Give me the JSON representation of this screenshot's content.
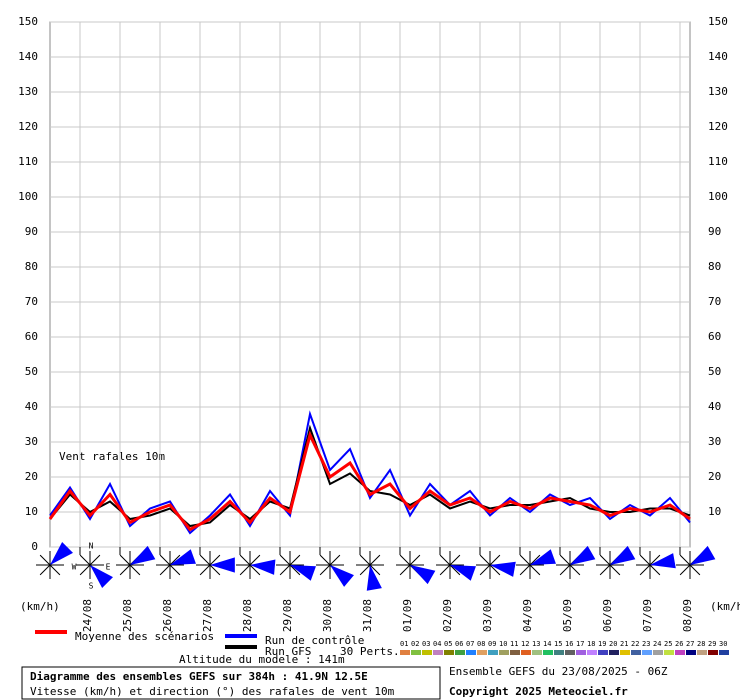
{
  "chart_data": {
    "type": "line",
    "annotation": "Vent rafales 10m",
    "y_unit_left": "(km/h)",
    "y_unit_right": "(km/h)",
    "x": [
      0,
      12,
      24,
      36,
      48,
      60,
      72,
      84,
      96,
      108,
      120,
      132,
      144,
      156,
      168,
      180,
      192,
      204,
      216,
      228,
      240,
      252,
      264,
      276,
      288,
      300,
      312,
      324,
      336,
      348,
      360,
      372,
      384
    ],
    "xlim": [
      0,
      384
    ],
    "xticks": [
      {
        "value": 18,
        "label": "24/08"
      },
      {
        "value": 42,
        "label": "25/08"
      },
      {
        "value": 66,
        "label": "26/08"
      },
      {
        "value": 90,
        "label": "27/08"
      },
      {
        "value": 114,
        "label": "28/08"
      },
      {
        "value": 138,
        "label": "29/08"
      },
      {
        "value": 162,
        "label": "30/08"
      },
      {
        "value": 186,
        "label": "31/08"
      },
      {
        "value": 210,
        "label": "01/09"
      },
      {
        "value": 234,
        "label": "02/09"
      },
      {
        "value": 258,
        "label": "03/09"
      },
      {
        "value": 282,
        "label": "04/09"
      },
      {
        "value": 306,
        "label": "05/09"
      },
      {
        "value": 330,
        "label": "06/09"
      },
      {
        "value": 354,
        "label": "07/09"
      },
      {
        "value": 378,
        "label": "08/09"
      }
    ],
    "ylim": [
      0,
      150
    ],
    "yticks": [
      0,
      10,
      20,
      30,
      40,
      50,
      60,
      70,
      80,
      90,
      100,
      110,
      120,
      130,
      140,
      150
    ],
    "y2ticks": [
      10,
      20,
      30,
      40,
      50,
      60,
      70,
      80,
      90,
      100,
      110,
      120,
      130,
      140,
      150
    ],
    "grid": true,
    "series": [
      {
        "name": "Run de contrôle",
        "color": "#0000ff",
        "values": [
          9,
          17,
          8,
          18,
          6,
          11,
          13,
          4,
          9,
          15,
          6,
          16,
          9,
          38,
          22,
          28,
          14,
          22,
          9,
          18,
          12,
          16,
          9,
          14,
          10,
          15,
          12,
          14,
          8,
          12,
          9,
          14,
          7
        ]
      },
      {
        "name": "Run GFS",
        "color": "#000000",
        "values": [
          8,
          15,
          10,
          13,
          8,
          9,
          11,
          6,
          7,
          12,
          8,
          13,
          11,
          34,
          18,
          21,
          16,
          15,
          12,
          15,
          11,
          13,
          11,
          12,
          12,
          13,
          14,
          11,
          10,
          10,
          11,
          11,
          9
        ]
      },
      {
        "name": "Moyenne des scénarios",
        "color": "#ff0000",
        "values": [
          8,
          16,
          9,
          15,
          7,
          10,
          12,
          5,
          8,
          13,
          7,
          14,
          10,
          32,
          20,
          24,
          15,
          18,
          11,
          16,
          12,
          14,
          10,
          13,
          11,
          14,
          13,
          12,
          9,
          11,
          10,
          12,
          8
        ]
      }
    ],
    "legend_extra": "30 Perts.",
    "perturbations": [
      {
        "name": "01",
        "color": "#e08040"
      },
      {
        "name": "02",
        "color": "#80c040"
      },
      {
        "name": "03",
        "color": "#c0c000"
      },
      {
        "name": "04",
        "color": "#c080c0"
      },
      {
        "name": "05",
        "color": "#808000"
      },
      {
        "name": "06",
        "color": "#40a040"
      },
      {
        "name": "07",
        "color": "#2080ff"
      },
      {
        "name": "08",
        "color": "#e0a060"
      },
      {
        "name": "09",
        "color": "#40a0c0"
      },
      {
        "name": "10",
        "color": "#a0a060"
      },
      {
        "name": "11",
        "color": "#806040"
      },
      {
        "name": "12",
        "color": "#e06020"
      },
      {
        "name": "13",
        "color": "#a0c080"
      },
      {
        "name": "14",
        "color": "#20c060"
      },
      {
        "name": "15",
        "color": "#408080"
      },
      {
        "name": "16",
        "color": "#606060"
      },
      {
        "name": "17",
        "color": "#a060e0"
      },
      {
        "name": "18",
        "color": "#c080ff"
      },
      {
        "name": "19",
        "color": "#4040c0"
      },
      {
        "name": "20",
        "color": "#202060"
      },
      {
        "name": "21",
        "color": "#e0c000"
      },
      {
        "name": "22",
        "color": "#4060a0"
      },
      {
        "name": "23",
        "color": "#60a0ff"
      },
      {
        "name": "24",
        "color": "#a0a0a0"
      },
      {
        "name": "25",
        "color": "#c0e040"
      },
      {
        "name": "26",
        "color": "#c040c0"
      },
      {
        "name": "27",
        "color": "#000080"
      },
      {
        "name": "28",
        "color": "#c0a080"
      },
      {
        "name": "29",
        "color": "#800000"
      },
      {
        "name": "30",
        "color": "#2040a0"
      }
    ],
    "compass": [
      "N",
      "W",
      "E",
      "S"
    ],
    "wind_direction_deg": [
      45,
      135,
      60,
      70,
      90,
      95,
      110,
      130,
      170,
      120,
      110,
      100,
      70,
      60,
      60,
      80,
      60
    ],
    "altitude": "Altitude du modele : 141m",
    "info_title": "Diagramme des ensembles GEFS sur 384h : 41.9N 12.5E",
    "info_sub": "Vitesse (km/h) et direction (°) des rafales de vent 10m",
    "run_info": "Ensemble GEFS du 23/08/2025 - 06Z",
    "copyright": "Copyright 2025 Meteociel.fr"
  }
}
